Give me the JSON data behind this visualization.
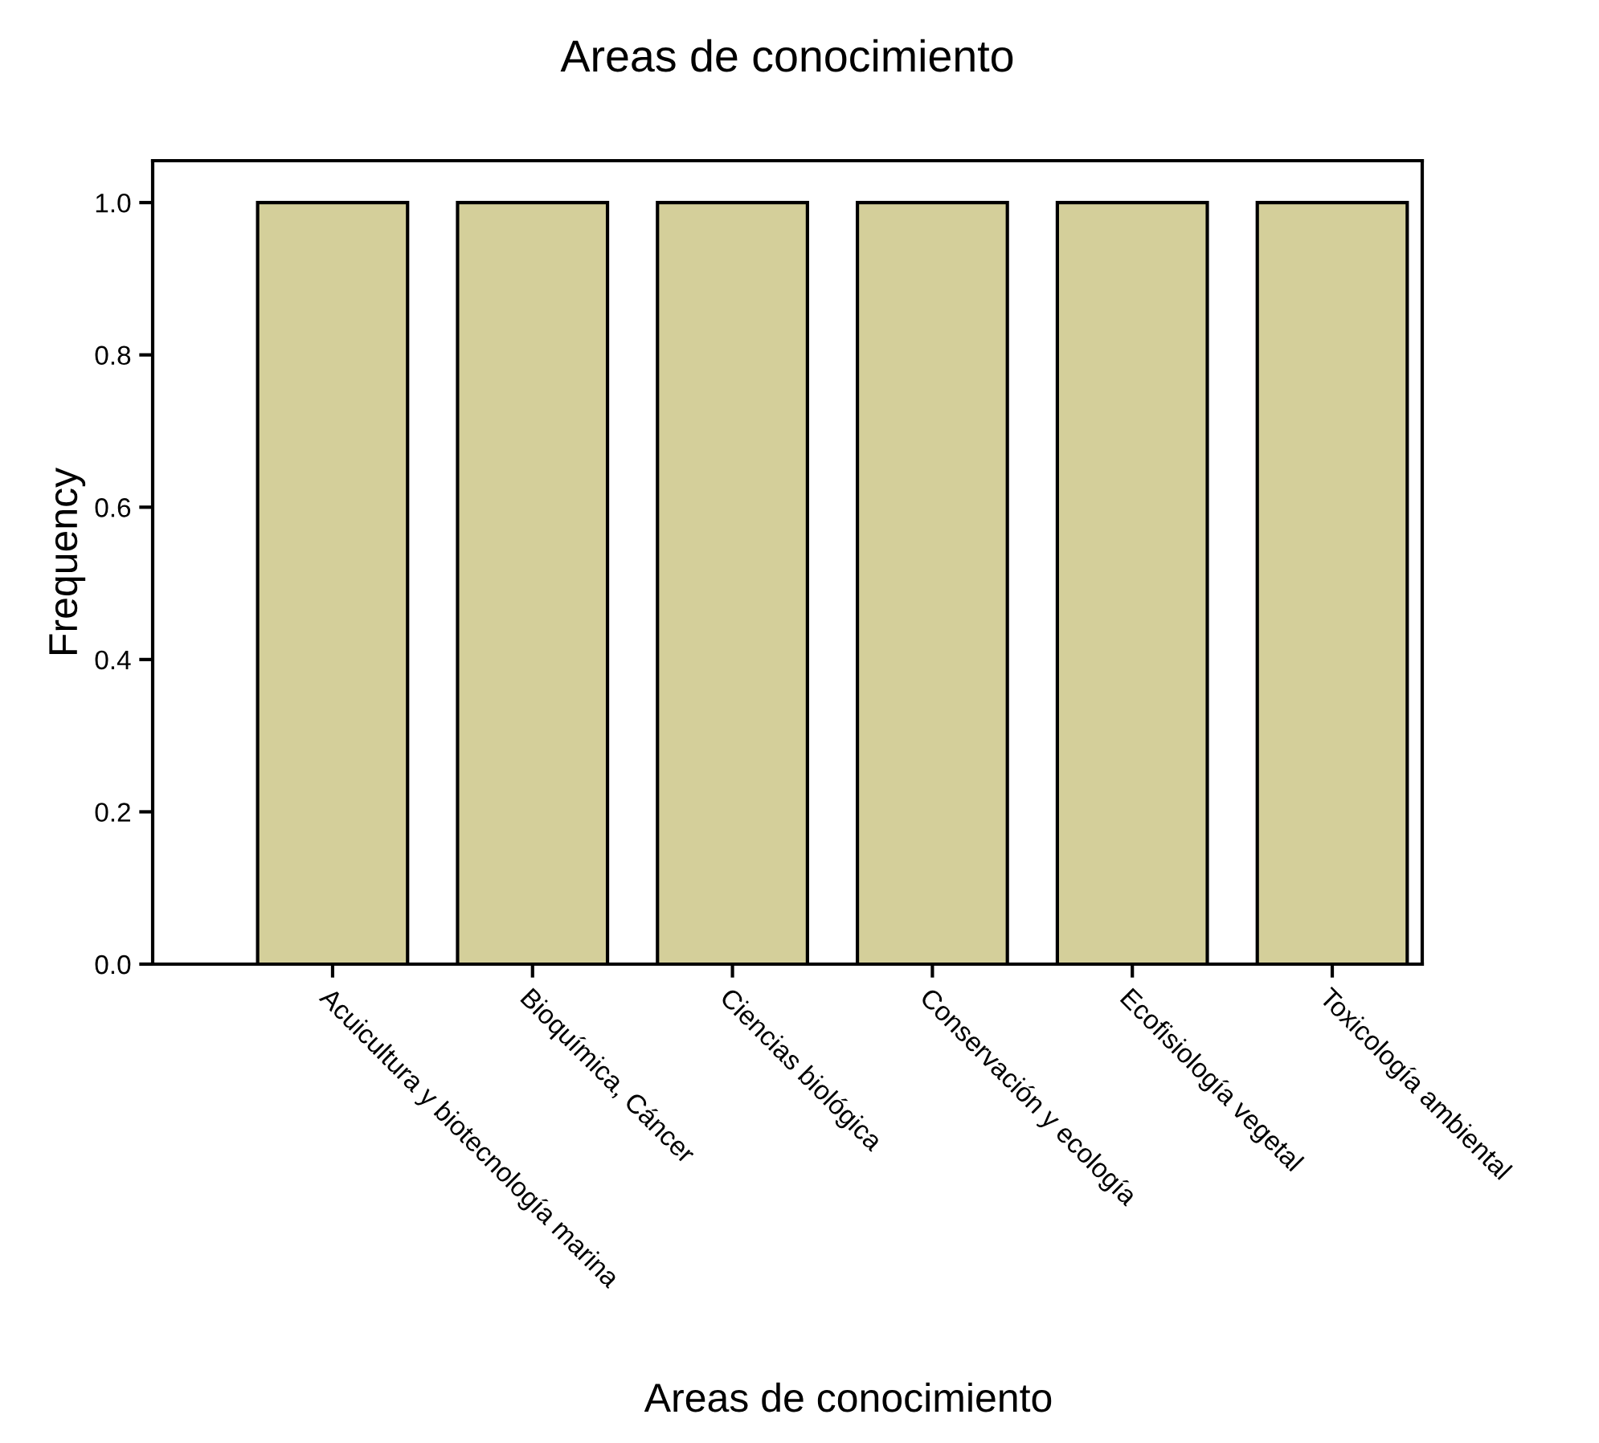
{
  "chart_data": {
    "type": "bar",
    "title": "Areas de conocimiento",
    "xlabel": "Areas de conocimiento",
    "ylabel": "Frequency",
    "categories": [
      "Acuicultura y biotecnología marina",
      "Bioquímica, Cáncer",
      "Ciencias biológica",
      "Conservación y ecología",
      "Ecofisiología vegetal",
      "Toxicología ambiental"
    ],
    "values": [
      1.0,
      1.0,
      1.0,
      1.0,
      1.0,
      1.0
    ],
    "color": "#d4cf9a",
    "ylim": [
      0,
      1.055
    ],
    "yticks": [
      {
        "value": 0,
        "label": "0.0"
      },
      {
        "value": 0.2,
        "label": "0.2"
      },
      {
        "value": 0.4,
        "label": "0.4"
      },
      {
        "value": 0.6,
        "label": "0.6"
      },
      {
        "value": 0.8,
        "label": "0.8"
      },
      {
        "value": 1.0,
        "label": "1.0"
      }
    ],
    "grid": false,
    "legend": false
  }
}
